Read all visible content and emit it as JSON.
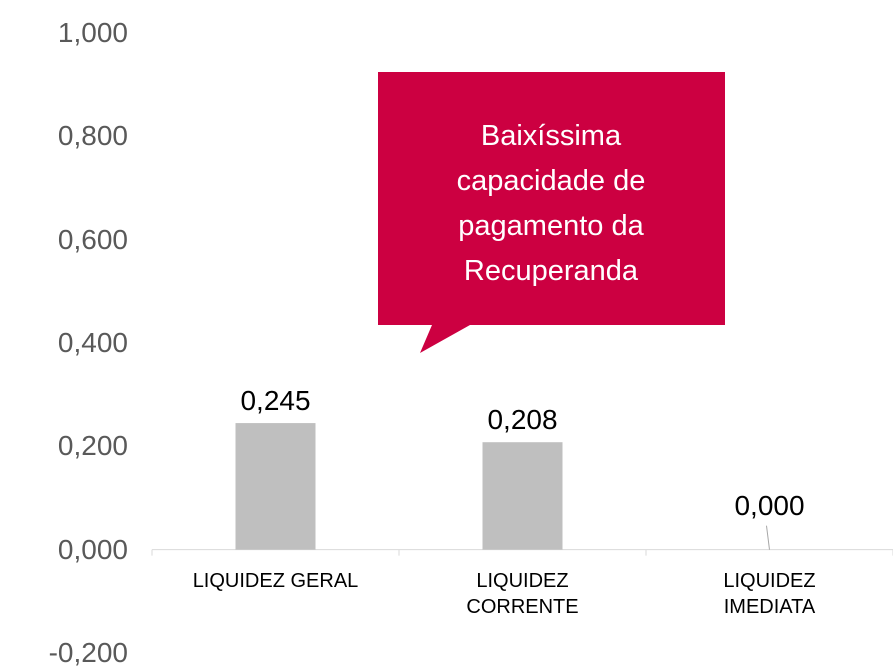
{
  "chart_data": {
    "type": "bar",
    "categories": [
      "LIQUIDEZ GERAL",
      "LIQUIDEZ CORRENTE",
      "LIQUIDEZ IMEDIATA"
    ],
    "values": [
      0.245,
      0.208,
      0.0
    ],
    "value_labels": [
      "0,245",
      "0,208",
      "0,000"
    ],
    "color": "#bfbfbf",
    "ylim": [
      -0.2,
      1.0
    ],
    "yticks": [
      {
        "value": -0.2,
        "label": "-0,200"
      },
      {
        "value": 0,
        "label": "0,000"
      },
      {
        "value": 0.2,
        "label": "0,200"
      },
      {
        "value": 0.4,
        "label": "0,400"
      },
      {
        "value": 0.6,
        "label": "0,600"
      },
      {
        "value": 0.8,
        "label": "0,800"
      },
      {
        "value": 1.0,
        "label": "1,000"
      }
    ],
    "annotation": "Baixíssima capacidade de pagamento da Recuperanda",
    "annotation_color": "#cc0041"
  }
}
